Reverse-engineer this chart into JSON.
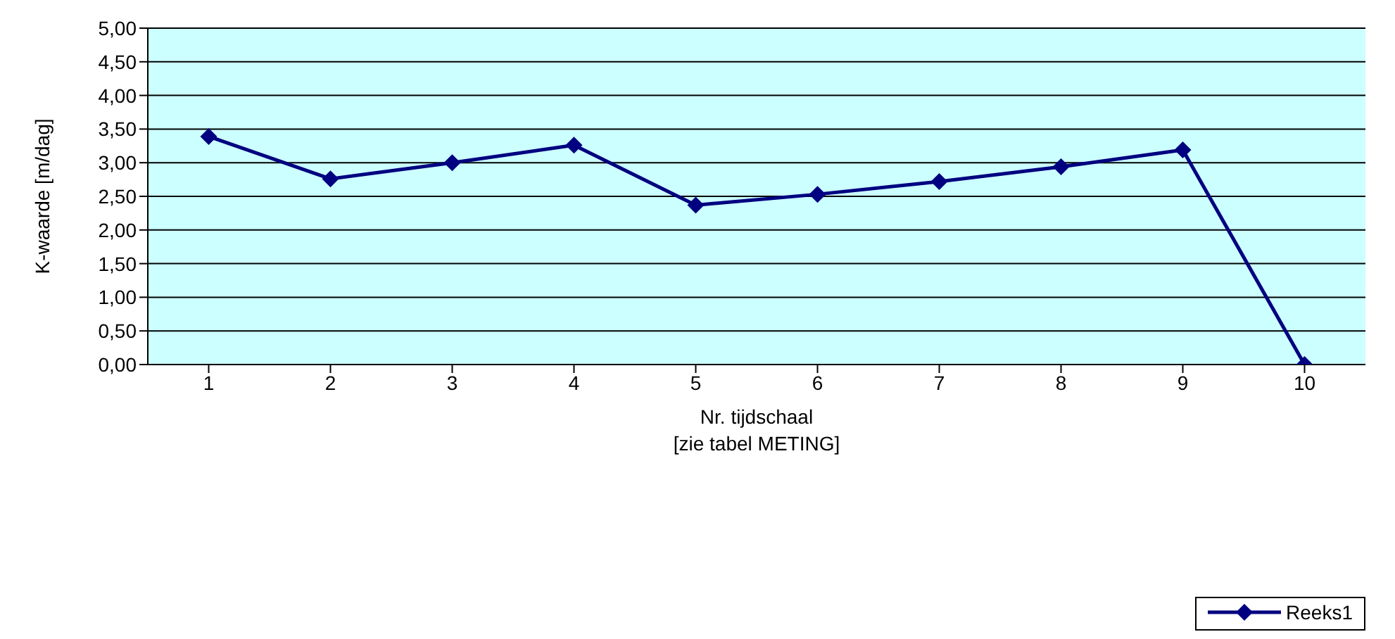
{
  "chart_data": {
    "type": "line",
    "xlabel": "Nr. tijdschaal\n[zie tabel METING]",
    "ylabel": "K-waarde [m/dag]",
    "categories": [
      "1",
      "2",
      "3",
      "4",
      "5",
      "6",
      "7",
      "8",
      "9",
      "10"
    ],
    "series": [
      {
        "name": "Reeks1",
        "color": "#000080",
        "values": [
          3.39,
          2.76,
          3.0,
          3.26,
          2.37,
          2.53,
          2.72,
          2.94,
          3.19,
          0
        ]
      }
    ],
    "ylim": [
      0,
      5
    ],
    "yticks": [
      {
        "value": 0,
        "label": "0,00"
      },
      {
        "value": 0.5,
        "label": "0,50"
      },
      {
        "value": 1,
        "label": "1,00"
      },
      {
        "value": 1.5,
        "label": "1,50"
      },
      {
        "value": 2,
        "label": "2,00"
      },
      {
        "value": 2.5,
        "label": "2,50"
      },
      {
        "value": 3,
        "label": "3,00"
      },
      {
        "value": 3.5,
        "label": "3,50"
      },
      {
        "value": 4,
        "label": "4,00"
      },
      {
        "value": 4.5,
        "label": "4,50"
      },
      {
        "value": 5,
        "label": "5,00"
      }
    ],
    "grid": "y",
    "legend": "bottom right",
    "marker": "diamond",
    "line_style": "solid"
  }
}
